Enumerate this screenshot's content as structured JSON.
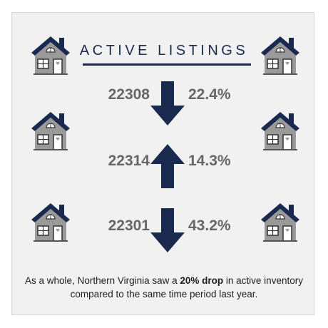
{
  "title": "ACTIVE LISTINGS",
  "colors": {
    "navy": "#1a2a4f",
    "house_gray": "#9a9a9a",
    "text_gray": "#666666",
    "background": "#f1f1f1"
  },
  "icons": {
    "house": "house-icon",
    "down": "arrow-down-icon",
    "up": "arrow-up-icon"
  },
  "listings": [
    {
      "zip": "22308",
      "direction": "down",
      "change": "22.4%"
    },
    {
      "zip": "22314",
      "direction": "up",
      "change": "14.3%"
    },
    {
      "zip": "22301",
      "direction": "down",
      "change": "43.2%"
    }
  ],
  "footnote": {
    "pre": "As a whole, Northern Virginia saw a ",
    "highlight": "20% drop",
    "post": " in active inventory compared to the same time period last year."
  }
}
